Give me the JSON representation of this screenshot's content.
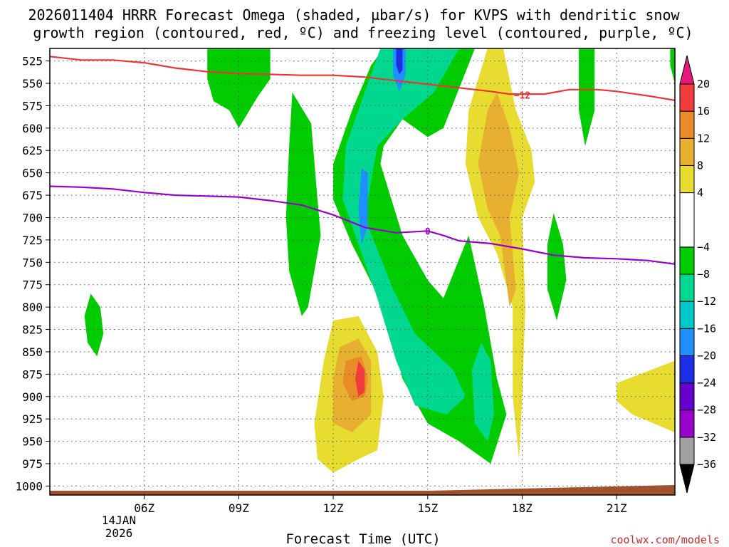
{
  "chart_data": {
    "type": "contour",
    "title_line1": "2026011404 HRRR Forecast Omega (shaded, µbar/s) for KVPS with dendritic snow",
    "title_line2": "growth region (contoured, red, ºC) and freezing level (contoured, purple, ºC)",
    "xlabel": "Forecast Time (UTC)",
    "credit": "coolwx.com/models",
    "x_range_hours": [
      3.0,
      22.85
    ],
    "x_ticks": [
      {
        "hour": 6,
        "label": "06Z"
      },
      {
        "hour": 9,
        "label": "09Z"
      },
      {
        "hour": 12,
        "label": "12Z"
      },
      {
        "hour": 15,
        "label": "15Z"
      },
      {
        "hour": 18,
        "label": "18Z"
      },
      {
        "hour": 21,
        "label": "21Z"
      }
    ],
    "date_label_line1": "14JAN",
    "date_label_line2": "2026",
    "y_range_mb": [
      511,
      1010
    ],
    "y_ticks": [
      "525",
      "550",
      "575",
      "600",
      "625",
      "650",
      "675",
      "700",
      "725",
      "750",
      "775",
      "800",
      "825",
      "850",
      "875",
      "900",
      "925",
      "950",
      "975",
      "1000"
    ],
    "colorbar": {
      "min": -36,
      "max": 20,
      "levels": [
        {
          "from": -36,
          "to": -32,
          "color": "#a0a0a0"
        },
        {
          "from": -32,
          "to": -28,
          "color": "#9900cc"
        },
        {
          "from": -28,
          "to": -24,
          "color": "#6600cc"
        },
        {
          "from": -24,
          "to": -20,
          "color": "#1e2ee6"
        },
        {
          "from": -20,
          "to": -16,
          "color": "#1e90ff"
        },
        {
          "from": -16,
          "to": -12,
          "color": "#00c8c8"
        },
        {
          "from": -12,
          "to": -8,
          "color": "#00d890"
        },
        {
          "from": -8,
          "to": -4,
          "color": "#00cc00"
        },
        {
          "from": -4,
          "to": 4,
          "color": "#ffffff"
        },
        {
          "from": 4,
          "to": 8,
          "color": "#e8dc30"
        },
        {
          "from": 8,
          "to": 12,
          "color": "#e8b030"
        },
        {
          "from": 12,
          "to": 16,
          "color": "#e88c28"
        },
        {
          "from": 16,
          "to": 20,
          "color": "#f03c3c"
        }
      ],
      "over_color": "#e6197a",
      "under_color": "#000000",
      "tick_labels": [
        "20",
        "16",
        "12",
        "8",
        "4",
        "−4",
        "−8",
        "−12",
        "−16",
        "−20",
        "−24",
        "−28",
        "−32",
        "−36"
      ]
    },
    "contours": [
      {
        "name": "dendritic-minus12",
        "label": "−12",
        "color": "#ee3333",
        "label_at": {
          "hour": 18.0,
          "mb": 563
        },
        "points": [
          [
            3.0,
            520
          ],
          [
            4.0,
            524
          ],
          [
            5.0,
            524
          ],
          [
            6.0,
            527
          ],
          [
            7.0,
            533
          ],
          [
            8.0,
            537
          ],
          [
            9.0,
            539
          ],
          [
            10.0,
            540
          ],
          [
            11.0,
            541
          ],
          [
            12.0,
            541
          ],
          [
            13.0,
            543
          ],
          [
            14.0,
            547
          ],
          [
            15.0,
            551
          ],
          [
            16.0,
            555
          ],
          [
            17.0,
            559
          ],
          [
            17.6,
            562
          ],
          [
            18.7,
            562
          ],
          [
            19.5,
            557
          ],
          [
            20.4,
            557
          ],
          [
            21.0,
            559
          ],
          [
            22.0,
            564
          ],
          [
            22.85,
            569
          ]
        ]
      },
      {
        "name": "freezing-level-0",
        "label": "0",
        "color": "#9900cc",
        "label_at": {
          "hour": 15.0,
          "mb": 715
        },
        "points": [
          [
            3.0,
            665
          ],
          [
            4.0,
            666
          ],
          [
            5.0,
            668
          ],
          [
            6.0,
            672
          ],
          [
            7.0,
            675
          ],
          [
            8.0,
            676
          ],
          [
            9.0,
            677
          ],
          [
            10.0,
            681
          ],
          [
            11.0,
            686
          ],
          [
            12.0,
            697
          ],
          [
            13.0,
            711
          ],
          [
            14.0,
            717
          ],
          [
            15.0,
            715
          ],
          [
            15.5,
            720
          ],
          [
            16.0,
            726
          ],
          [
            17.0,
            729
          ],
          [
            18.0,
            735
          ],
          [
            19.0,
            742
          ],
          [
            20.0,
            745
          ],
          [
            21.0,
            746
          ],
          [
            22.0,
            748
          ],
          [
            22.85,
            752
          ]
        ]
      }
    ],
    "omega_features": [
      {
        "name": "omega-blob-green-0530",
        "level": -6,
        "points": [
          [
            8.5,
            511
          ],
          [
            10.0,
            511
          ],
          [
            10.0,
            545
          ],
          [
            9.6,
            565
          ],
          [
            9.0,
            600
          ],
          [
            8.7,
            580
          ],
          [
            8.2,
            570
          ],
          [
            8.0,
            545
          ],
          [
            8.0,
            511
          ]
        ]
      },
      {
        "name": "omega-blob-green-0445",
        "level": -6,
        "points": [
          [
            4.3,
            785
          ],
          [
            4.6,
            800
          ],
          [
            4.7,
            830
          ],
          [
            4.5,
            855
          ],
          [
            4.2,
            840
          ],
          [
            4.1,
            810
          ]
        ]
      },
      {
        "name": "omega-band-green-1000",
        "level": -6,
        "points": [
          [
            10.7,
            560
          ],
          [
            11.3,
            595
          ],
          [
            11.5,
            680
          ],
          [
            11.6,
            720
          ],
          [
            11.2,
            800
          ],
          [
            11.0,
            810
          ],
          [
            10.6,
            760
          ],
          [
            10.5,
            700
          ],
          [
            10.6,
            620
          ]
        ]
      },
      {
        "name": "omega-band-green-central",
        "level": -6,
        "points": [
          [
            13.6,
            511
          ],
          [
            16.5,
            511
          ],
          [
            15.5,
            600
          ],
          [
            15.0,
            610
          ],
          [
            14.6,
            600
          ],
          [
            14.2,
            590
          ],
          [
            13.6,
            620
          ],
          [
            13.5,
            640
          ],
          [
            14.2,
            720
          ],
          [
            15.0,
            770
          ],
          [
            15.5,
            790
          ],
          [
            16.3,
            720
          ],
          [
            16.8,
            800
          ],
          [
            17.2,
            880
          ],
          [
            17.5,
            920
          ],
          [
            17.0,
            975
          ],
          [
            16.0,
            950
          ],
          [
            15.0,
            930
          ],
          [
            14.2,
            880
          ],
          [
            13.6,
            800
          ],
          [
            12.6,
            730
          ],
          [
            12.0,
            680
          ],
          [
            12.0,
            640
          ],
          [
            12.6,
            580
          ],
          [
            13.2,
            530
          ]
        ]
      },
      {
        "name": "omega-band-teal-central",
        "level": -10,
        "points": [
          [
            13.5,
            511
          ],
          [
            16.0,
            511
          ],
          [
            15.2,
            560
          ],
          [
            14.2,
            590
          ],
          [
            13.4,
            620
          ],
          [
            13.0,
            700
          ],
          [
            13.9,
            780
          ],
          [
            14.6,
            830
          ],
          [
            15.8,
            870
          ],
          [
            16.2,
            900
          ],
          [
            15.6,
            920
          ],
          [
            14.6,
            910
          ],
          [
            14.0,
            860
          ],
          [
            13.4,
            790
          ],
          [
            12.8,
            730
          ],
          [
            12.3,
            680
          ],
          [
            12.4,
            620
          ],
          [
            13.0,
            560
          ]
        ]
      },
      {
        "name": "omega-core-blue-0530",
        "level": -18,
        "points": [
          [
            13.9,
            511
          ],
          [
            14.3,
            511
          ],
          [
            14.3,
            540
          ],
          [
            14.1,
            560
          ],
          [
            13.9,
            540
          ]
        ]
      },
      {
        "name": "omega-core-blue-0680",
        "level": -18,
        "points": [
          [
            12.9,
            645
          ],
          [
            13.1,
            650
          ],
          [
            13.1,
            710
          ],
          [
            12.9,
            730
          ],
          [
            12.8,
            690
          ]
        ]
      },
      {
        "name": "omega-core-indigo-0525",
        "level": -22,
        "points": [
          [
            14.0,
            511
          ],
          [
            14.2,
            511
          ],
          [
            14.2,
            535
          ],
          [
            14.1,
            540
          ],
          [
            14.0,
            530
          ]
        ]
      },
      {
        "name": "omega-blob-green-1900",
        "level": -6,
        "points": [
          [
            19.0,
            695
          ],
          [
            19.3,
            730
          ],
          [
            19.4,
            770
          ],
          [
            19.1,
            815
          ],
          [
            18.8,
            780
          ],
          [
            18.8,
            730
          ]
        ]
      },
      {
        "name": "omega-blob-green-2000",
        "level": -6,
        "points": [
          [
            19.8,
            511
          ],
          [
            20.3,
            511
          ],
          [
            20.3,
            580
          ],
          [
            20.0,
            620
          ],
          [
            19.8,
            580
          ]
        ]
      },
      {
        "name": "omega-blob-green-2230",
        "level": -6,
        "points": [
          [
            22.7,
            511
          ],
          [
            22.85,
            511
          ],
          [
            22.85,
            550
          ],
          [
            22.7,
            530
          ]
        ]
      },
      {
        "name": "omega-blob-teal-1630",
        "level": -10,
        "points": [
          [
            16.7,
            840
          ],
          [
            17.0,
            860
          ],
          [
            17.1,
            920
          ],
          [
            16.9,
            950
          ],
          [
            16.5,
            930
          ],
          [
            16.4,
            870
          ]
        ]
      },
      {
        "name": "omega-band-yellow-1700",
        "level": 6,
        "points": [
          [
            16.9,
            511
          ],
          [
            17.4,
            511
          ],
          [
            17.8,
            580
          ],
          [
            18.3,
            625
          ],
          [
            18.4,
            660
          ],
          [
            18.0,
            700
          ],
          [
            18.1,
            800
          ],
          [
            18.0,
            900
          ],
          [
            17.9,
            970
          ],
          [
            17.7,
            900
          ],
          [
            17.7,
            800
          ],
          [
            17.2,
            740
          ],
          [
            16.6,
            700
          ],
          [
            16.2,
            640
          ],
          [
            16.3,
            580
          ]
        ]
      },
      {
        "name": "omega-band-gold-1700",
        "level": 10,
        "points": [
          [
            17.2,
            560
          ],
          [
            17.6,
            600
          ],
          [
            17.9,
            650
          ],
          [
            17.6,
            700
          ],
          [
            17.8,
            780
          ],
          [
            17.6,
            800
          ],
          [
            17.3,
            720
          ],
          [
            16.9,
            690
          ],
          [
            16.6,
            640
          ],
          [
            16.9,
            580
          ]
        ]
      },
      {
        "name": "omega-blob-yellow-1230",
        "level": 6,
        "points": [
          [
            12.0,
            815
          ],
          [
            12.8,
            810
          ],
          [
            13.4,
            850
          ],
          [
            13.6,
            900
          ],
          [
            13.4,
            960
          ],
          [
            12.8,
            970
          ],
          [
            12.0,
            985
          ],
          [
            11.5,
            970
          ],
          [
            11.4,
            930
          ],
          [
            11.7,
            860
          ]
        ]
      },
      {
        "name": "omega-blob-gold-1230",
        "level": 10,
        "points": [
          [
            12.2,
            845
          ],
          [
            12.8,
            835
          ],
          [
            13.2,
            860
          ],
          [
            13.2,
            920
          ],
          [
            12.6,
            940
          ],
          [
            12.0,
            930
          ],
          [
            12.0,
            880
          ]
        ]
      },
      {
        "name": "omega-blob-orange-1250",
        "level": 14,
        "points": [
          [
            12.4,
            860
          ],
          [
            12.9,
            855
          ],
          [
            13.1,
            880
          ],
          [
            13.0,
            900
          ],
          [
            12.6,
            905
          ],
          [
            12.3,
            885
          ]
        ]
      },
      {
        "name": "omega-core-red-1300",
        "level": 18,
        "points": [
          [
            12.8,
            860
          ],
          [
            13.0,
            870
          ],
          [
            13.0,
            895
          ],
          [
            12.8,
            900
          ],
          [
            12.7,
            880
          ]
        ]
      },
      {
        "name": "omega-blob-yellow-2230",
        "level": 6,
        "points": [
          [
            21.0,
            885
          ],
          [
            22.85,
            860
          ],
          [
            22.85,
            940
          ],
          [
            21.5,
            920
          ],
          [
            21.0,
            905
          ]
        ]
      }
    ]
  }
}
